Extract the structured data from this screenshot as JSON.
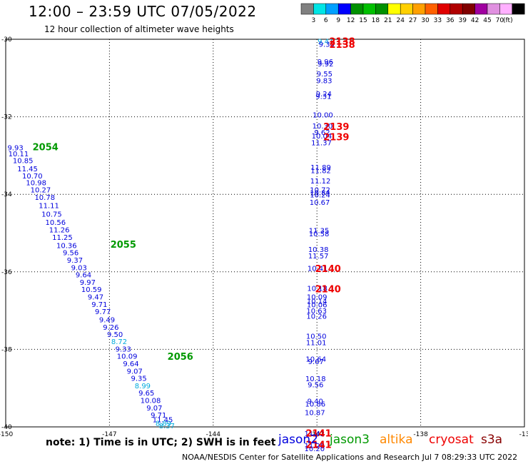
{
  "header": {
    "title": "12:00 – 23:59 UTC 07/05/2022",
    "subtitle": "12 hour collection of altimeter wave heights"
  },
  "colorbar": {
    "unit": "(ft)",
    "ticks": [
      "3",
      "6",
      "9",
      "12",
      "15",
      "18",
      "21",
      "24",
      "27",
      "30",
      "33",
      "36",
      "39",
      "42",
      "45",
      "70"
    ],
    "colors": [
      "#808080",
      "#00e5e5",
      "#00a0ff",
      "#0000ff",
      "#009000",
      "#00c000",
      "#009000",
      "#ffff00",
      "#ffd000",
      "#ffa000",
      "#ff6000",
      "#e00000",
      "#b00000",
      "#800000",
      "#a000a0",
      "#e090e0",
      "#ffb0ff",
      "#000000"
    ]
  },
  "footer": {
    "note": "note: 1) Time is in UTC; 2) SWH is in feet",
    "credit": "NOAA/NESDIS Center for Satellite Applications and Research    Jul  7 08:29:33 UTC 2022"
  },
  "satellites": [
    {
      "name": "jason2",
      "color": "#0000dd"
    },
    {
      "name": "jason3",
      "color": "#009900"
    },
    {
      "name": "altika",
      "color": "#ff8800"
    },
    {
      "name": "cryosat",
      "color": "#ee0000"
    },
    {
      "name": "s3a",
      "color": "#880000"
    }
  ],
  "chart_data": {
    "type": "scatter",
    "xlim": [
      -150,
      -135
    ],
    "ylim": [
      -40,
      -30
    ],
    "x_ticks": [
      "-150",
      "-147",
      "-144",
      "-141",
      "-138",
      "-13"
    ],
    "y_ticks": [
      "-30",
      "-32",
      "-34",
      "-36",
      "-38",
      "-40"
    ],
    "grid": true,
    "points": [
      {
        "x": -149.72,
        "y": -32.79,
        "label": "9.93",
        "color": "#0000dd"
      },
      {
        "x": -149.63,
        "y": -32.95,
        "label": "10.11",
        "color": "#0000dd"
      },
      {
        "x": -149.5,
        "y": -33.12,
        "label": "10.85",
        "color": "#0000dd"
      },
      {
        "x": -149.37,
        "y": -33.33,
        "label": "11.45",
        "color": "#0000dd"
      },
      {
        "x": -149.23,
        "y": -33.52,
        "label": "10.70",
        "color": "#0000dd"
      },
      {
        "x": -149.12,
        "y": -33.69,
        "label": "10.98",
        "color": "#0000dd"
      },
      {
        "x": -148.99,
        "y": -33.88,
        "label": "10.27",
        "color": "#0000dd"
      },
      {
        "x": -148.87,
        "y": -34.07,
        "label": "10.78",
        "color": "#0000dd"
      },
      {
        "x": -148.75,
        "y": -34.28,
        "label": "11.11",
        "color": "#0000dd"
      },
      {
        "x": -148.67,
        "y": -34.5,
        "label": "10.75",
        "color": "#0000dd"
      },
      {
        "x": -148.56,
        "y": -34.71,
        "label": "10.56",
        "color": "#0000dd"
      },
      {
        "x": -148.45,
        "y": -34.91,
        "label": "11.26",
        "color": "#0000dd"
      },
      {
        "x": -148.36,
        "y": -35.1,
        "label": "11.25",
        "color": "#0000dd"
      },
      {
        "x": -148.24,
        "y": -35.31,
        "label": "10.36",
        "color": "#0000dd"
      },
      {
        "x": -148.12,
        "y": -35.5,
        "label": "9.56",
        "color": "#0000dd"
      },
      {
        "x": -148.0,
        "y": -35.69,
        "label": "9.37",
        "color": "#0000dd"
      },
      {
        "x": -147.88,
        "y": -35.88,
        "label": "9.03",
        "color": "#0000dd"
      },
      {
        "x": -147.75,
        "y": -36.07,
        "label": "9.64",
        "color": "#0000dd"
      },
      {
        "x": -147.63,
        "y": -36.26,
        "label": "9.97",
        "color": "#0000dd"
      },
      {
        "x": -147.52,
        "y": -36.45,
        "label": "10.59",
        "color": "#0000dd"
      },
      {
        "x": -147.4,
        "y": -36.64,
        "label": "9.47",
        "color": "#0000dd"
      },
      {
        "x": -147.29,
        "y": -36.83,
        "label": "9.71",
        "color": "#0000dd"
      },
      {
        "x": -147.19,
        "y": -37.02,
        "label": "9.77",
        "color": "#0000dd"
      },
      {
        "x": -147.07,
        "y": -37.23,
        "label": "9.49",
        "color": "#0000dd"
      },
      {
        "x": -146.96,
        "y": -37.42,
        "label": "9.26",
        "color": "#0000dd"
      },
      {
        "x": -146.84,
        "y": -37.61,
        "label": "9.50",
        "color": "#0000dd"
      },
      {
        "x": -146.72,
        "y": -37.79,
        "label": "8.72",
        "color": "#00aadd"
      },
      {
        "x": -146.6,
        "y": -37.98,
        "label": "9.33",
        "color": "#0000dd"
      },
      {
        "x": -146.49,
        "y": -38.17,
        "label": "10.09",
        "color": "#0000dd"
      },
      {
        "x": -146.38,
        "y": -38.36,
        "label": "9.64",
        "color": "#0000dd"
      },
      {
        "x": -146.27,
        "y": -38.55,
        "label": "9.07",
        "color": "#0000dd"
      },
      {
        "x": -146.15,
        "y": -38.74,
        "label": "9.35",
        "color": "#0000dd"
      },
      {
        "x": -146.04,
        "y": -38.93,
        "label": "8.99",
        "color": "#00aadd"
      },
      {
        "x": -145.93,
        "y": -39.12,
        "label": "9.65",
        "color": "#0000dd"
      },
      {
        "x": -145.81,
        "y": -39.31,
        "label": "10.08",
        "color": "#0000dd"
      },
      {
        "x": -145.7,
        "y": -39.5,
        "label": "9.07",
        "color": "#0000dd"
      },
      {
        "x": -145.58,
        "y": -39.69,
        "label": "9.71",
        "color": "#0000dd"
      },
      {
        "x": -145.46,
        "y": -39.81,
        "label": "11.45",
        "color": "#0000dd"
      },
      {
        "x": -145.44,
        "y": -39.9,
        "label": "8.89",
        "color": "#00aadd"
      },
      {
        "x": -145.34,
        "y": -39.96,
        "label": "8.37",
        "color": "#00aadd"
      },
      {
        "x": -140.75,
        "y": -30.05,
        "label": "9.41",
        "color": "#00aadd"
      },
      {
        "x": -140.72,
        "y": -30.12,
        "label": "9.30",
        "color": "#0000dd"
      },
      {
        "x": -140.76,
        "y": -30.57,
        "label": "9.96",
        "color": "#0000dd"
      },
      {
        "x": -140.75,
        "y": -30.63,
        "label": "9.92",
        "color": "#0000dd"
      },
      {
        "x": -140.78,
        "y": -30.88,
        "label": "9.55",
        "color": "#0000dd"
      },
      {
        "x": -140.79,
        "y": -31.06,
        "label": "9.83",
        "color": "#0000dd"
      },
      {
        "x": -140.8,
        "y": -31.4,
        "label": "9.24",
        "color": "#0000dd"
      },
      {
        "x": -140.81,
        "y": -31.46,
        "label": "9.31",
        "color": "#0000dd"
      },
      {
        "x": -140.83,
        "y": -31.94,
        "label": "10.00",
        "color": "#0000dd"
      },
      {
        "x": -140.84,
        "y": -32.23,
        "label": "10.30",
        "color": "#0000dd"
      },
      {
        "x": -140.85,
        "y": -32.39,
        "label": "9.62",
        "color": "#0000dd"
      },
      {
        "x": -140.86,
        "y": -32.49,
        "label": "10.04",
        "color": "#0000dd"
      },
      {
        "x": -140.87,
        "y": -32.66,
        "label": "11.37",
        "color": "#0000dd"
      },
      {
        "x": -140.89,
        "y": -33.3,
        "label": "11.89",
        "color": "#0000dd"
      },
      {
        "x": -140.89,
        "y": -33.38,
        "label": "11.82",
        "color": "#0000dd"
      },
      {
        "x": -140.9,
        "y": -33.65,
        "label": "11.12",
        "color": "#0000dd"
      },
      {
        "x": -140.91,
        "y": -33.88,
        "label": "10.72",
        "color": "#0000dd"
      },
      {
        "x": -140.91,
        "y": -33.95,
        "label": "10.84",
        "color": "#0000dd"
      },
      {
        "x": -140.91,
        "y": -34.01,
        "label": "10.24",
        "color": "#0000dd"
      },
      {
        "x": -140.92,
        "y": -34.2,
        "label": "10.67",
        "color": "#0000dd"
      },
      {
        "x": -140.94,
        "y": -34.93,
        "label": "11.35",
        "color": "#0000dd"
      },
      {
        "x": -140.94,
        "y": -35.01,
        "label": "10.58",
        "color": "#0000dd"
      },
      {
        "x": -140.96,
        "y": -35.41,
        "label": "10.38",
        "color": "#0000dd"
      },
      {
        "x": -140.96,
        "y": -35.58,
        "label": "11.57",
        "color": "#0000dd"
      },
      {
        "x": -140.98,
        "y": -35.9,
        "label": "10.41",
        "color": "#0000dd"
      },
      {
        "x": -140.99,
        "y": -36.42,
        "label": "10.18",
        "color": "#0000dd"
      },
      {
        "x": -141.0,
        "y": -36.64,
        "label": "10.09",
        "color": "#0000dd"
      },
      {
        "x": -141.0,
        "y": -36.75,
        "label": "10.14",
        "color": "#0000dd"
      },
      {
        "x": -141.0,
        "y": -36.84,
        "label": "10.06",
        "color": "#0000dd"
      },
      {
        "x": -141.01,
        "y": -37.0,
        "label": "10.63",
        "color": "#0000dd"
      },
      {
        "x": -141.01,
        "y": -37.14,
        "label": "10.26",
        "color": "#0000dd"
      },
      {
        "x": -141.02,
        "y": -37.65,
        "label": "10.50",
        "color": "#0000dd"
      },
      {
        "x": -141.02,
        "y": -37.82,
        "label": "11.01",
        "color": "#0000dd"
      },
      {
        "x": -141.03,
        "y": -38.24,
        "label": "10.64",
        "color": "#0000dd"
      },
      {
        "x": -141.03,
        "y": -38.31,
        "label": "9.67",
        "color": "#0000dd"
      },
      {
        "x": -141.04,
        "y": -38.75,
        "label": "10.18",
        "color": "#0000dd"
      },
      {
        "x": -141.04,
        "y": -38.9,
        "label": "9.56",
        "color": "#0000dd"
      },
      {
        "x": -141.05,
        "y": -39.33,
        "label": "9.40",
        "color": "#0000dd"
      },
      {
        "x": -141.05,
        "y": -39.4,
        "label": "10.86",
        "color": "#0000dd"
      },
      {
        "x": -141.06,
        "y": -39.62,
        "label": "10.87",
        "color": "#0000dd"
      },
      {
        "x": -141.07,
        "y": -40.17,
        "label": "11.42",
        "color": "#0000dd"
      },
      {
        "x": -141.07,
        "y": -40.48,
        "label": "11.28",
        "color": "#0000dd"
      },
      {
        "x": -141.07,
        "y": -40.55,
        "label": "10.20",
        "color": "#0000dd"
      }
    ],
    "pass_labels": [
      {
        "x": -148.85,
        "y": -32.77,
        "label": "2054",
        "color": "#009900"
      },
      {
        "x": -146.6,
        "y": -35.29,
        "label": "2055",
        "color": "#009900"
      },
      {
        "x": -144.95,
        "y": -38.18,
        "label": "2056",
        "color": "#009900"
      },
      {
        "x": -140.27,
        "y": -30.05,
        "label": "2138",
        "color": "#ee0000"
      },
      {
        "x": -140.27,
        "y": -30.13,
        "label": "2138",
        "color": "#ee0000"
      },
      {
        "x": -140.44,
        "y": -32.25,
        "label": "2139",
        "color": "#ee0000"
      },
      {
        "x": -140.44,
        "y": -32.51,
        "label": "2139",
        "color": "#ee0000"
      },
      {
        "x": -140.68,
        "y": -35.91,
        "label": "2140",
        "color": "#ee0000"
      },
      {
        "x": -140.68,
        "y": -36.44,
        "label": "2140",
        "color": "#ee0000"
      },
      {
        "x": -140.95,
        "y": -40.16,
        "label": "2141",
        "color": "#ee0000"
      },
      {
        "x": -140.95,
        "y": -40.45,
        "label": "2141",
        "color": "#ee0000"
      }
    ]
  }
}
